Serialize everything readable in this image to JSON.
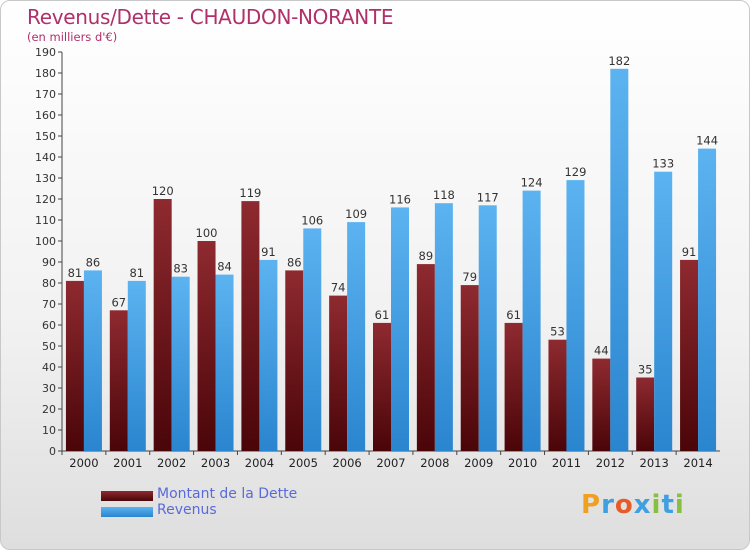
{
  "title": "Revenus/Dette - CHAUDON-NORANTE",
  "subtitle": "(en milliers d'€)",
  "legend": [
    {
      "label": "Montant de la Dette",
      "color": "#7a1a22"
    },
    {
      "label": "Revenus",
      "color": "#3e9be3"
    }
  ],
  "brand": {
    "letters": [
      "P",
      "r",
      "o",
      "x",
      "i",
      "t",
      "i"
    ],
    "colors": [
      "#f0a020",
      "#3ea0e0",
      "#e85a28",
      "#3ea0e0",
      "#86c040",
      "#3ea0e0",
      "#86c040"
    ]
  },
  "chart_data": {
    "type": "bar",
    "categories": [
      "2000",
      "2001",
      "2002",
      "2003",
      "2004",
      "2005",
      "2006",
      "2007",
      "2008",
      "2009",
      "2010",
      "2011",
      "2012",
      "2013",
      "2014"
    ],
    "series": [
      {
        "name": "Montant de la Dette",
        "color": "#7a1a22",
        "values": [
          81,
          67,
          120,
          100,
          119,
          86,
          74,
          61,
          89,
          79,
          61,
          53,
          44,
          35,
          91
        ]
      },
      {
        "name": "Revenus",
        "color": "#3e9be3",
        "values": [
          86,
          81,
          83,
          84,
          91,
          106,
          109,
          116,
          118,
          117,
          124,
          129,
          182,
          133,
          144
        ]
      }
    ],
    "ylim": [
      0,
      190
    ],
    "yticks": [
      0,
      10,
      20,
      30,
      40,
      50,
      60,
      70,
      80,
      90,
      100,
      110,
      120,
      130,
      140,
      150,
      160,
      170,
      180,
      190
    ],
    "grid": false,
    "legend_position": "bottom-left"
  }
}
